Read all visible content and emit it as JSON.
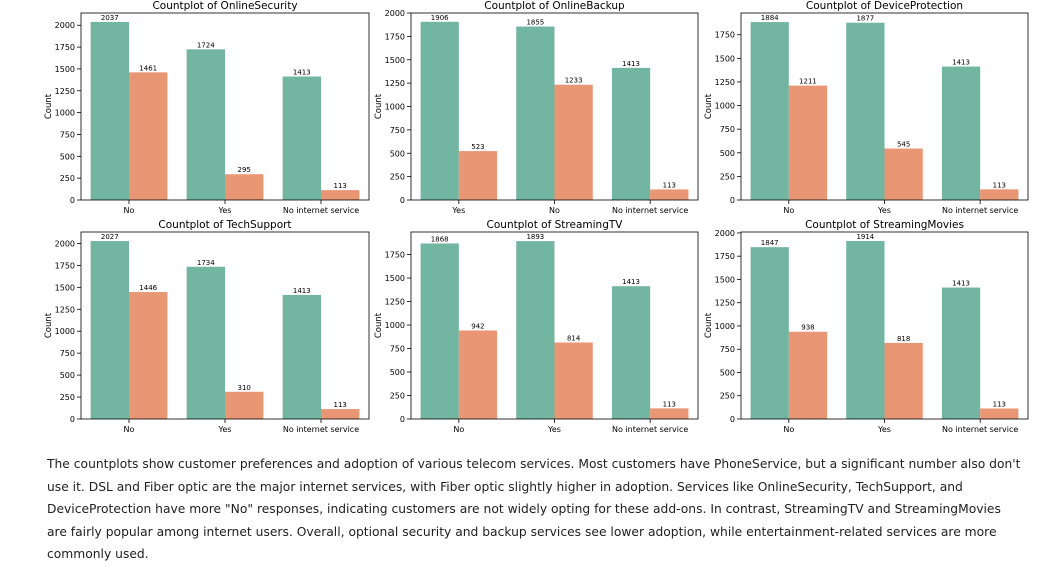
{
  "chart_data": [
    {
      "type": "bar",
      "title": "Countplot of OnlineSecurity",
      "xlabel": "",
      "ylabel": "Count",
      "categories": [
        "No",
        "Yes",
        "No internet service"
      ],
      "series": [
        {
          "values": [
            2037,
            1724,
            1413
          ]
        },
        {
          "values": [
            1461,
            295,
            113
          ]
        }
      ],
      "ylim": [
        0,
        2140
      ],
      "yticks": [
        0,
        250,
        500,
        750,
        1000,
        1250,
        1500,
        1750,
        2000
      ],
      "grid": false
    },
    {
      "type": "bar",
      "title": "Countplot of OnlineBackup",
      "xlabel": "",
      "ylabel": "Count",
      "categories": [
        "Yes",
        "No",
        "No internet service"
      ],
      "series": [
        {
          "values": [
            1906,
            1855,
            1413
          ]
        },
        {
          "values": [
            523,
            1233,
            113
          ]
        }
      ],
      "ylim": [
        0,
        2000
      ],
      "yticks": [
        0,
        250,
        500,
        750,
        1000,
        1250,
        1500,
        1750,
        2000
      ],
      "grid": false
    },
    {
      "type": "bar",
      "title": "Countplot of DeviceProtection",
      "xlabel": "",
      "ylabel": "Count",
      "categories": [
        "No",
        "Yes",
        "No internet service"
      ],
      "series": [
        {
          "values": [
            1884,
            1877,
            1413
          ]
        },
        {
          "values": [
            1211,
            545,
            113
          ]
        }
      ],
      "ylim": [
        0,
        1980
      ],
      "yticks": [
        0,
        250,
        500,
        750,
        1000,
        1250,
        1500,
        1750
      ],
      "grid": false
    },
    {
      "type": "bar",
      "title": "Countplot of TechSupport",
      "xlabel": "",
      "ylabel": "Count",
      "categories": [
        "No",
        "Yes",
        "No internet service"
      ],
      "series": [
        {
          "values": [
            2027,
            1734,
            1413
          ]
        },
        {
          "values": [
            1446,
            310,
            113
          ]
        }
      ],
      "ylim": [
        0,
        2130
      ],
      "yticks": [
        0,
        250,
        500,
        750,
        1000,
        1250,
        1500,
        1750,
        2000
      ],
      "grid": false
    },
    {
      "type": "bar",
      "title": "Countplot of StreamingTV",
      "xlabel": "",
      "ylabel": "Count",
      "categories": [
        "No",
        "Yes",
        "No internet service"
      ],
      "series": [
        {
          "values": [
            1868,
            1893,
            1413
          ]
        },
        {
          "values": [
            942,
            814,
            113
          ]
        }
      ],
      "ylim": [
        0,
        1990
      ],
      "yticks": [
        0,
        250,
        500,
        750,
        1000,
        1250,
        1500,
        1750
      ],
      "grid": false
    },
    {
      "type": "bar",
      "title": "Countplot of StreamingMovies",
      "xlabel": "",
      "ylabel": "Count",
      "categories": [
        "No",
        "Yes",
        "No internet service"
      ],
      "series": [
        {
          "values": [
            1847,
            1914,
            1413
          ]
        },
        {
          "values": [
            938,
            818,
            113
          ]
        }
      ],
      "ylim": [
        0,
        2010
      ],
      "yticks": [
        0,
        250,
        500,
        750,
        1000,
        1250,
        1500,
        1750,
        2000
      ],
      "grid": false
    }
  ],
  "colors": {
    "series_1": "#72b6a1",
    "series_2": "#e99675",
    "axis": "#000000"
  },
  "caption": "The countplots show customer preferences and adoption of various telecom services. Most customers have PhoneService, but a significant number also don't use it. DSL and Fiber optic are the major internet services, with Fiber optic slightly higher in adoption. Services like OnlineSecurity, TechSupport, and DeviceProtection have more \"No\" responses, indicating customers are not widely opting for these add-ons. In contrast, StreamingTV and StreamingMovies are fairly popular among internet users. Overall, optional security and backup services see lower adoption, while entertainment-related services are more commonly used."
}
